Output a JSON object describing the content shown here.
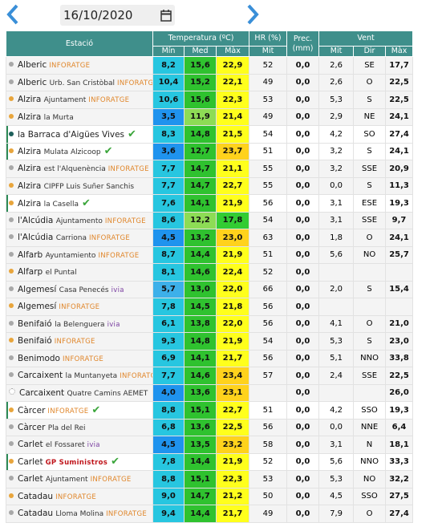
{
  "header": {
    "date": "16/10/2020"
  },
  "table": {
    "head": {
      "station": "Estació",
      "temp": "Temperatura (ºC)",
      "hr": "HR (%)",
      "prec": "Prec. (mm)",
      "wind": "Vent",
      "sub": [
        "Mín",
        "Med",
        "Màx",
        "Mit",
        "Mit",
        "Dir",
        "Màx"
      ]
    },
    "rows": [
      {
        "name": "Alberic",
        "source": "INFORATGE",
        "dot": "#a8a8a8",
        "cells": [
          "8,2",
          "15,6",
          "22,9",
          "52",
          "0,0",
          "2,6",
          "SE",
          "17,7"
        ]
      },
      {
        "name": "Alberic",
        "place": "Urb. San Cristòbal",
        "source": "INFORATGE",
        "dot": "#a8a8a8",
        "cells": [
          "10,4",
          "15,2",
          "22,1",
          "49",
          "0,0",
          "2,6",
          "O",
          "22,5"
        ]
      },
      {
        "name": "Alzira",
        "place": "Ajuntament",
        "source": "INFORATGE",
        "dot": "#e8a53c",
        "cells": [
          "10,6",
          "15,6",
          "22,3",
          "53",
          "0,0",
          "5,3",
          "S",
          "22,5"
        ]
      },
      {
        "name": "Alzira",
        "place": "la Murta",
        "dot": "#e8a53c",
        "cells": [
          "3,5",
          "11,9",
          "21,4",
          "49",
          "0,0",
          "2,9",
          "NE",
          "24,1"
        ]
      },
      {
        "name": "la Barraca d'Aigües Vives",
        "dot": "#1d5f5b",
        "check": true,
        "highlight": true,
        "cells": [
          "8,3",
          "14,8",
          "21,5",
          "54",
          "0,0",
          "4,2",
          "SO",
          "27,4"
        ]
      },
      {
        "name": "Alzira",
        "place": "Mulata Alzicoop",
        "dot": "#e8a53c",
        "check": true,
        "highlight": true,
        "cells": [
          "3,6",
          "12,7",
          "23,7",
          "51",
          "0,0",
          "3,2",
          "S",
          "24,1"
        ]
      },
      {
        "name": "Alzira",
        "place": "est l'Alquenència",
        "source": "INFORATGE",
        "dot": "#a8a8a8",
        "cells": [
          "7,7",
          "14,7",
          "21,1",
          "55",
          "0,0",
          "3,2",
          "SSE",
          "20,9"
        ]
      },
      {
        "name": "Alzira",
        "place": "CIPFP Luis Suñer Sanchis",
        "dot": "#e8a53c",
        "cells": [
          "7,7",
          "14,7",
          "22,7",
          "55",
          "0,0",
          "0,0",
          "S",
          "11,3"
        ]
      },
      {
        "name": "Alzira",
        "place": "la Casella",
        "dot": "#e8a53c",
        "check": true,
        "highlight": true,
        "cells": [
          "7,6",
          "14,1",
          "21,9",
          "56",
          "0,0",
          "3,1",
          "ESE",
          "19,3"
        ]
      },
      {
        "name": "l'Alcúdia",
        "place": "Ajuntamento",
        "source": "INFORATGE",
        "dot": "#a8a8a8",
        "cells": [
          "8,6",
          "12,2",
          "17,8",
          "54",
          "0,0",
          "3,1",
          "SSE",
          "9,7"
        ]
      },
      {
        "name": "l'Alcúdia",
        "place": "Carriona",
        "source": "INFORATGE",
        "dot": "#a8a8a8",
        "cells": [
          "4,5",
          "13,2",
          "23,0",
          "63",
          "0,0",
          "1,8",
          "O",
          "24,1"
        ]
      },
      {
        "name": "Alfarb",
        "place": "Ayuntamiento",
        "source": "INFORATGE",
        "dot": "#a8a8a8",
        "cells": [
          "8,7",
          "14,4",
          "21,9",
          "51",
          "0,0",
          "5,6",
          "NO",
          "25,7"
        ]
      },
      {
        "name": "Alfarp",
        "place": "el Puntal",
        "dot": "#e8a53c",
        "cells": [
          "8,1",
          "14,6",
          "22,4",
          "52",
          "0,0",
          null,
          null,
          null
        ]
      },
      {
        "name": "Algemesí",
        "place": "Casa Penecés",
        "source": "ivia",
        "dot": "#a8a8a8",
        "cells": [
          "5,7",
          "13,0",
          "22,0",
          "66",
          "0,0",
          "2,0",
          "S",
          "15,4"
        ]
      },
      {
        "name": "Algemesí",
        "source": "INFORATGE",
        "dot": "#e8a53c",
        "cells": [
          "7,8",
          "14,5",
          "21,8",
          "56",
          "0,0",
          null,
          null,
          null
        ]
      },
      {
        "name": "Benifaió",
        "place": "la Belenguera",
        "source": "ivia",
        "dot": "#a8a8a8",
        "cells": [
          "6,1",
          "13,8",
          "22,0",
          "56",
          "0,0",
          "4,1",
          "O",
          "21,0"
        ]
      },
      {
        "name": "Benifaió",
        "source": "INFORATGE",
        "dot": "#e8a53c",
        "cells": [
          "9,3",
          "14,8",
          "21,9",
          "54",
          "0,0",
          "5,3",
          "S",
          "23,0"
        ]
      },
      {
        "name": "Benimodo",
        "source": "INFORATGE",
        "dot": "#a8a8a8",
        "cells": [
          "6,9",
          "14,1",
          "21,7",
          "56",
          "0,0",
          "5,1",
          "NNO",
          "33,8"
        ]
      },
      {
        "name": "Carcaixent",
        "place": "la Muntanyeta",
        "source": "INFORATGE",
        "dot": "#a8a8a8",
        "cells": [
          "7,7",
          "14,6",
          "23,4",
          "57",
          "0,0",
          "2,4",
          "SSE",
          "22,5"
        ]
      },
      {
        "name": "Carcaixent",
        "place": "Quatre Camins AEMET",
        "dot": "#ffffff",
        "cells": [
          "4,0",
          "13,6",
          "23,1",
          null,
          "0,0",
          null,
          null,
          "26,0"
        ]
      },
      {
        "name": "Càrcer",
        "source": "INFORATGE",
        "dot": "#e8a53c",
        "check": true,
        "highlight": true,
        "cells": [
          "8,8",
          "15,1",
          "22,7",
          "51",
          "0,0",
          "4,2",
          "SSO",
          "19,3"
        ]
      },
      {
        "name": "Càrcer",
        "place": "Pla del Rei",
        "dot": "#a8a8a8",
        "cells": [
          "6,8",
          "13,6",
          "22,5",
          "56",
          "0,0",
          "0,0",
          "NNE",
          "6,4"
        ]
      },
      {
        "name": "Carlet",
        "place": "el Fossaret",
        "source": "ivia",
        "dot": "#a8a8a8",
        "cells": [
          "4,5",
          "13,5",
          "23,2",
          "58",
          "0,0",
          "3,1",
          "N",
          "18,1"
        ]
      },
      {
        "name": "Carlet",
        "source": "GP Suministros",
        "dot": "#e8a53c",
        "check": true,
        "highlight": true,
        "cells": [
          "7,8",
          "14,4",
          "21,9",
          "52",
          "0,0",
          "5,6",
          "NNO",
          "33,3"
        ]
      },
      {
        "name": "Carlet",
        "place": "Ajuntament",
        "source": "INFORATGE",
        "dot": "#a8a8a8",
        "cells": [
          "8,8",
          "15,1",
          "22,3",
          "53",
          "0,0",
          "5,3",
          "NO",
          "32,2"
        ]
      },
      {
        "name": "Catadau",
        "source": "INFORATGE",
        "dot": "#e8a53c",
        "cells": [
          "9,0",
          "14,7",
          "21,2",
          "50",
          "0,0",
          "4,5",
          "SSO",
          "27,5"
        ]
      },
      {
        "name": "Catadau",
        "place": "Lloma Molina",
        "source": "INFORATGE",
        "dot": "#a8a8a8",
        "cells": [
          "9,4",
          "14,4",
          "21,7",
          "49",
          "0,0",
          "7,9",
          "O",
          "27,4"
        ]
      }
    ]
  }
}
